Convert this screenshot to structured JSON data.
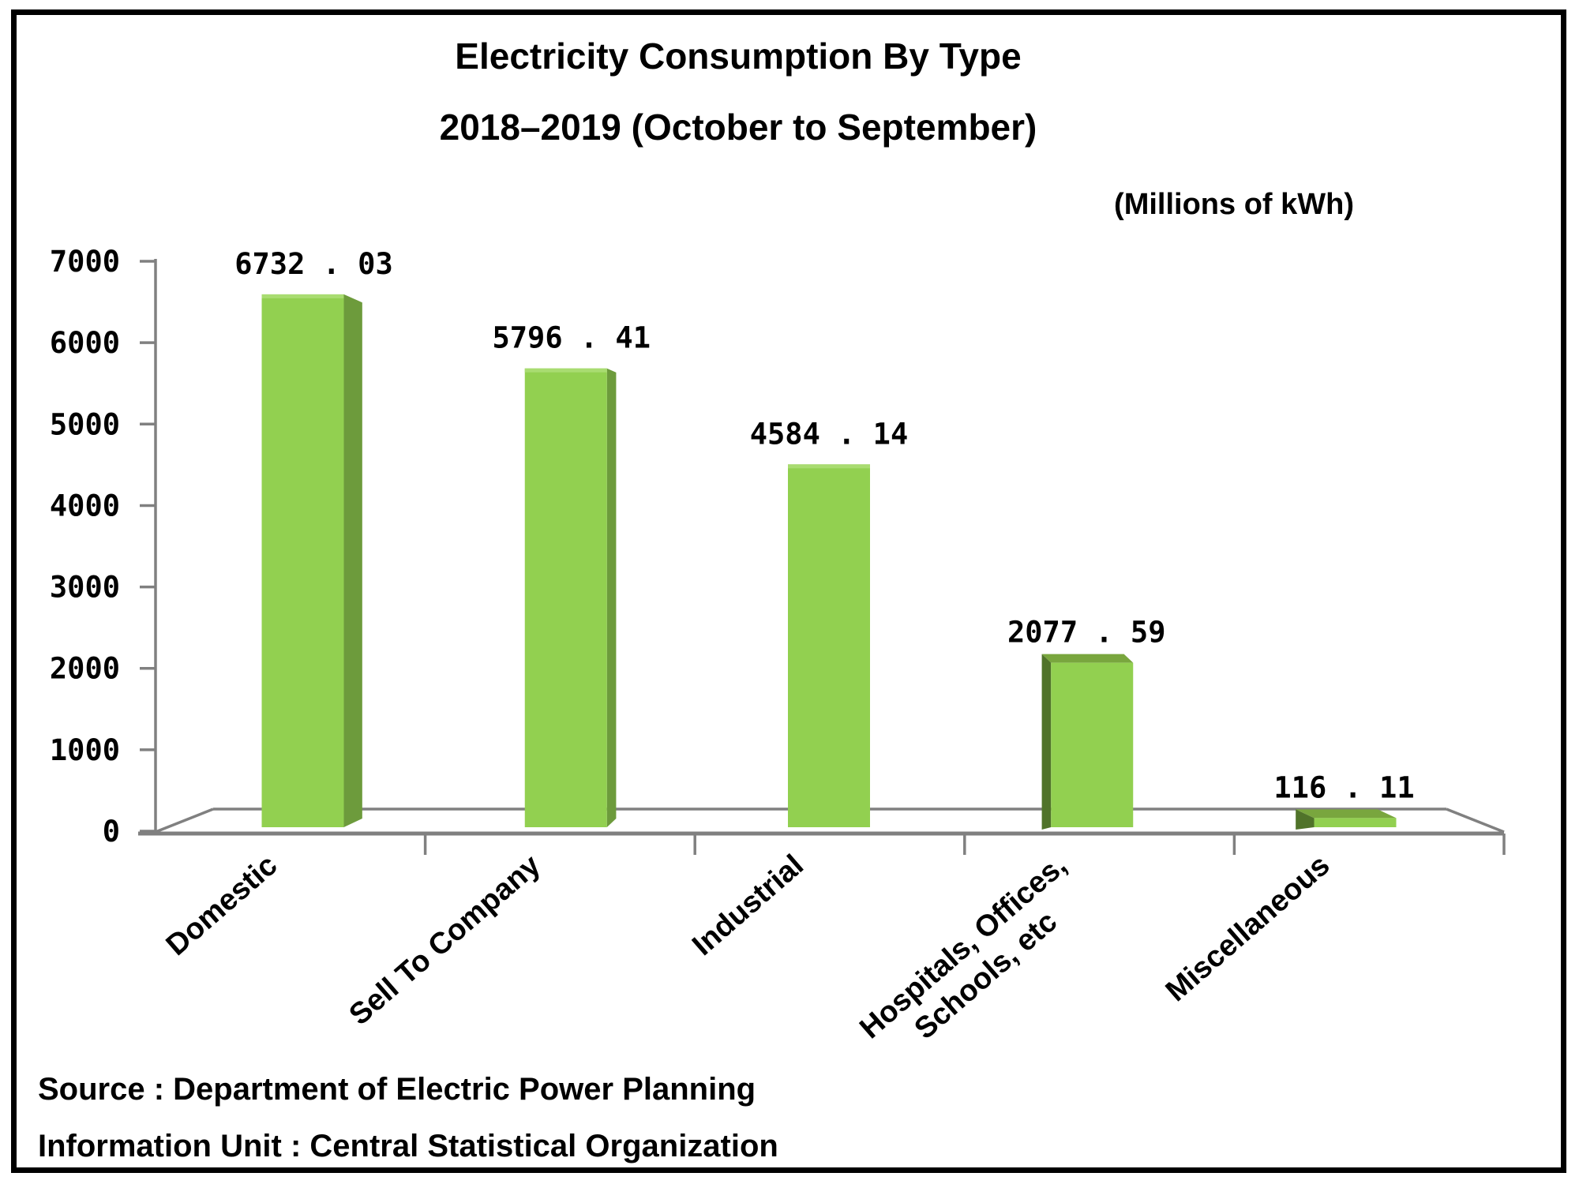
{
  "header": {
    "title": "Electricity Consumption By Type",
    "subtitle": "2018–2019 (October to September)",
    "unit_note": "(Millions of kWh)"
  },
  "footer": {
    "source": "Source : Department of Electric Power Planning",
    "info_unit": "Information Unit : Central Statistical Organization"
  },
  "chart_data": {
    "type": "bar",
    "title": "Electricity Consumption By Type",
    "subtitle": "2018–2019 (October to September)",
    "unit_label": "(Millions of kWh)",
    "categories": [
      "Domestic",
      "Sell To Company",
      "Industrial",
      "Hospitals, Offices,\nSchools, etc",
      "Miscellaneous"
    ],
    "values": [
      6732.03,
      5796.41,
      4584.14,
      2077.59,
      116.11
    ],
    "value_labels": [
      "6732 . 03",
      "5796 . 41",
      "4584 . 14",
      "2077 . 59",
      "116 . 11"
    ],
    "y_ticks": [
      0,
      1000,
      2000,
      3000,
      4000,
      5000,
      6000,
      7000
    ],
    "ylim": [
      0,
      7000
    ],
    "grid": false,
    "legend": "none",
    "style_3d": true,
    "colors": {
      "bar_front": "#92d050",
      "bar_side_right": "#6d9b3c",
      "bar_side_left": "#50732a",
      "bar_top": "#79a63e",
      "bar_top_highlight": "#a9dc71",
      "axis": "#808080",
      "text": "#000000"
    }
  }
}
